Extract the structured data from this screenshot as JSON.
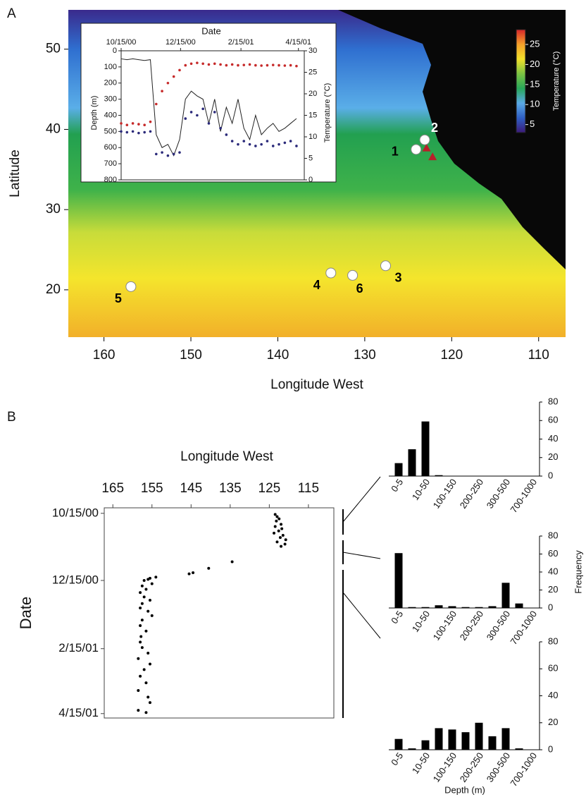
{
  "chart_data": [
    {
      "type": "map",
      "panel": "A",
      "xlabel": "Longitude West",
      "ylabel": "Latitude",
      "xlim": [
        164.1,
        106.9
      ],
      "ylim": [
        14.1,
        54.9
      ],
      "xticks": [
        160,
        150,
        140,
        130,
        120,
        110
      ],
      "yticks": [
        20,
        30,
        40,
        50
      ],
      "colorbar": {
        "label": "Temperature (°C)",
        "lim": [
          3,
          28.7
        ],
        "ticks": [
          5,
          10,
          15,
          20,
          25
        ],
        "colors": [
          "#3b1a78",
          "#2f5fc4",
          "#5aa9e6",
          "#28a85a",
          "#7cc443",
          "#f2e02a",
          "#f4a02a",
          "#d7262a"
        ]
      },
      "sites": {
        "labels": [
          "1",
          "2",
          "3",
          "4",
          "5",
          "6"
        ],
        "x": [
          124.1,
          123.1,
          127.6,
          133.9,
          156.9,
          131.4
        ],
        "y": [
          37.5,
          38.7,
          23.0,
          22.1,
          20.4,
          21.8
        ],
        "color": "#ffffff"
      },
      "markers": {
        "x": [
          122.9,
          122.2
        ],
        "y": [
          37.7,
          36.6
        ],
        "color": "#b8202a"
      }
    },
    {
      "type": "line",
      "xlabel": "Date",
      "ylabel": "Depth (m)",
      "y2label": "Temperature (°C)",
      "x": [
        "2000-10-15",
        "2000-10-21",
        "2000-10-27",
        "2000-11-02",
        "2000-11-08",
        "2000-11-14",
        "2000-11-20",
        "2000-11-26",
        "2000-12-02",
        "2000-12-08",
        "2000-12-14",
        "2000-12-20",
        "2000-12-26",
        "2001-01-01",
        "2001-01-07",
        "2001-01-13",
        "2001-01-19",
        "2001-01-25",
        "2001-01-31",
        "2001-02-06",
        "2001-02-12",
        "2001-02-18",
        "2001-02-24",
        "2001-03-02",
        "2001-03-08",
        "2001-03-14",
        "2001-03-20",
        "2001-03-26",
        "2001-04-01",
        "2001-04-07",
        "2001-04-13"
      ],
      "xlim": [
        "2000-10-15",
        "2001-04-21"
      ],
      "xticks": [
        {
          "value": "2000-10-15",
          "label": "10/15/00"
        },
        {
          "value": "2000-12-15",
          "label": "12/15/00"
        },
        {
          "value": "2001-02-15",
          "label": "2/15/01"
        },
        {
          "value": "2001-04-15",
          "label": "4/15/01"
        }
      ],
      "ylim": [
        0,
        800
      ],
      "yticks": [
        0,
        100,
        200,
        300,
        400,
        500,
        600,
        700,
        800
      ],
      "y_inverted": true,
      "y2lim": [
        0,
        30
      ],
      "y2ticks": [
        0,
        5,
        10,
        15,
        20,
        25,
        30
      ],
      "series": [
        {
          "color": "#222222",
          "mode": "line",
          "values": [
            50,
            55,
            50,
            55,
            60,
            55,
            520,
            600,
            580,
            650,
            550,
            300,
            250,
            280,
            300,
            450,
            300,
            500,
            350,
            450,
            300,
            480,
            550,
            400,
            520,
            480,
            450,
            500,
            480,
            450,
            420
          ]
        },
        {
          "color": "#c62a2a",
          "mode": "markers",
          "values": [
            450,
            460,
            450,
            455,
            460,
            440,
            330,
            250,
            200,
            160,
            120,
            90,
            80,
            75,
            80,
            85,
            80,
            85,
            90,
            85,
            90,
            88,
            85,
            90,
            92,
            90,
            88,
            90,
            92,
            90,
            95
          ]
        },
        {
          "color": "#2b2a7a",
          "mode": "markers",
          "values": [
            500,
            505,
            500,
            510,
            505,
            500,
            640,
            630,
            650,
            640,
            630,
            420,
            380,
            400,
            360,
            450,
            380,
            480,
            520,
            560,
            580,
            560,
            580,
            590,
            580,
            560,
            590,
            580,
            570,
            560,
            590
          ]
        }
      ]
    },
    {
      "type": "scatter",
      "panel": "B",
      "xlabel": "Longitude West",
      "ylabel": "Date",
      "xlim": [
        167.2,
        108.5
      ],
      "xticks": [
        165,
        155,
        145,
        135,
        125,
        115
      ],
      "ylim": [
        "2000-10-10",
        "2001-04-19"
      ],
      "yticks": [
        {
          "value": "2000-10-15",
          "label": "10/15/00"
        },
        {
          "value": "2000-12-15",
          "label": "12/15/00"
        },
        {
          "value": "2001-02-15",
          "label": "2/15/01"
        },
        {
          "value": "2001-04-15",
          "label": "4/15/01"
        }
      ],
      "color": "#000000",
      "x": [
        123.5,
        123,
        122.5,
        123.2,
        122,
        123.5,
        121.8,
        122.6,
        123.8,
        121.5,
        122.2,
        120.8,
        123,
        121,
        122,
        134.5,
        140.5,
        144.5,
        145.5,
        154,
        155.5,
        156,
        157,
        155,
        157.5,
        156.5,
        158,
        157,
        155.5,
        157.5,
        158,
        156,
        155,
        157.5,
        158,
        156.5,
        157.8,
        158,
        157.5,
        156,
        158.5,
        155.5,
        157,
        158,
        156.5,
        158.5,
        156,
        155.5,
        158.5,
        156.5
      ],
      "y": [
        "2000-10-16",
        "2000-10-18",
        "2000-10-20",
        "2000-10-22",
        "2000-10-25",
        "2000-10-27",
        "2000-10-29",
        "2000-10-31",
        "2000-11-02",
        "2000-11-04",
        "2000-11-06",
        "2000-11-08",
        "2000-11-10",
        "2000-11-12",
        "2000-11-14",
        "2000-11-28",
        "2000-12-04",
        "2000-12-08",
        "2000-12-09",
        "2000-12-12",
        "2000-12-13",
        "2000-12-14",
        "2000-12-15",
        "2000-12-18",
        "2000-12-20",
        "2000-12-23",
        "2000-12-26",
        "2000-12-30",
        "2001-01-02",
        "2001-01-05",
        "2001-01-09",
        "2001-01-12",
        "2001-01-16",
        "2001-01-20",
        "2001-01-25",
        "2001-01-30",
        "2001-02-04",
        "2001-02-09",
        "2001-02-14",
        "2001-02-19",
        "2001-02-24",
        "2001-03-01",
        "2001-03-06",
        "2001-03-12",
        "2001-03-18",
        "2001-03-25",
        "2001-03-31",
        "2001-04-05",
        "2001-04-12",
        "2001-04-14"
      ]
    },
    {
      "type": "bar",
      "categories": [
        "0-5",
        null,
        "10-50",
        null,
        "100-150",
        null,
        "200-250",
        null,
        "300-500",
        null,
        "700-1000"
      ],
      "values": [
        14,
        29,
        59,
        1,
        0,
        0,
        0,
        0,
        0,
        0,
        0
      ],
      "color": "#000000",
      "ylim": [
        0,
        80
      ],
      "yticks": [
        0,
        20,
        40,
        60,
        80
      ]
    },
    {
      "type": "bar",
      "ylabel": "Frequency",
      "categories": [
        "0-5",
        null,
        "10-50",
        null,
        "100-150",
        null,
        "200-250",
        null,
        "300-500",
        null,
        "700-1000"
      ],
      "values": [
        61,
        1,
        1,
        3,
        2,
        1,
        1,
        2,
        28,
        5,
        0
      ],
      "color": "#000000",
      "ylim": [
        0,
        80
      ],
      "yticks": [
        0,
        20,
        40,
        60,
        80
      ]
    },
    {
      "type": "bar",
      "xlabel": "Depth (m)",
      "categories": [
        "0-5",
        null,
        "10-50",
        null,
        "100-150",
        null,
        "200-250",
        null,
        "300-500",
        null,
        "700-1000"
      ],
      "values": [
        8,
        1,
        7,
        16,
        15,
        13,
        20,
        10,
        16,
        1,
        0
      ],
      "color": "#000000",
      "ylim": [
        0,
        80
      ],
      "yticks": [
        0,
        20,
        40,
        60,
        80
      ]
    }
  ]
}
